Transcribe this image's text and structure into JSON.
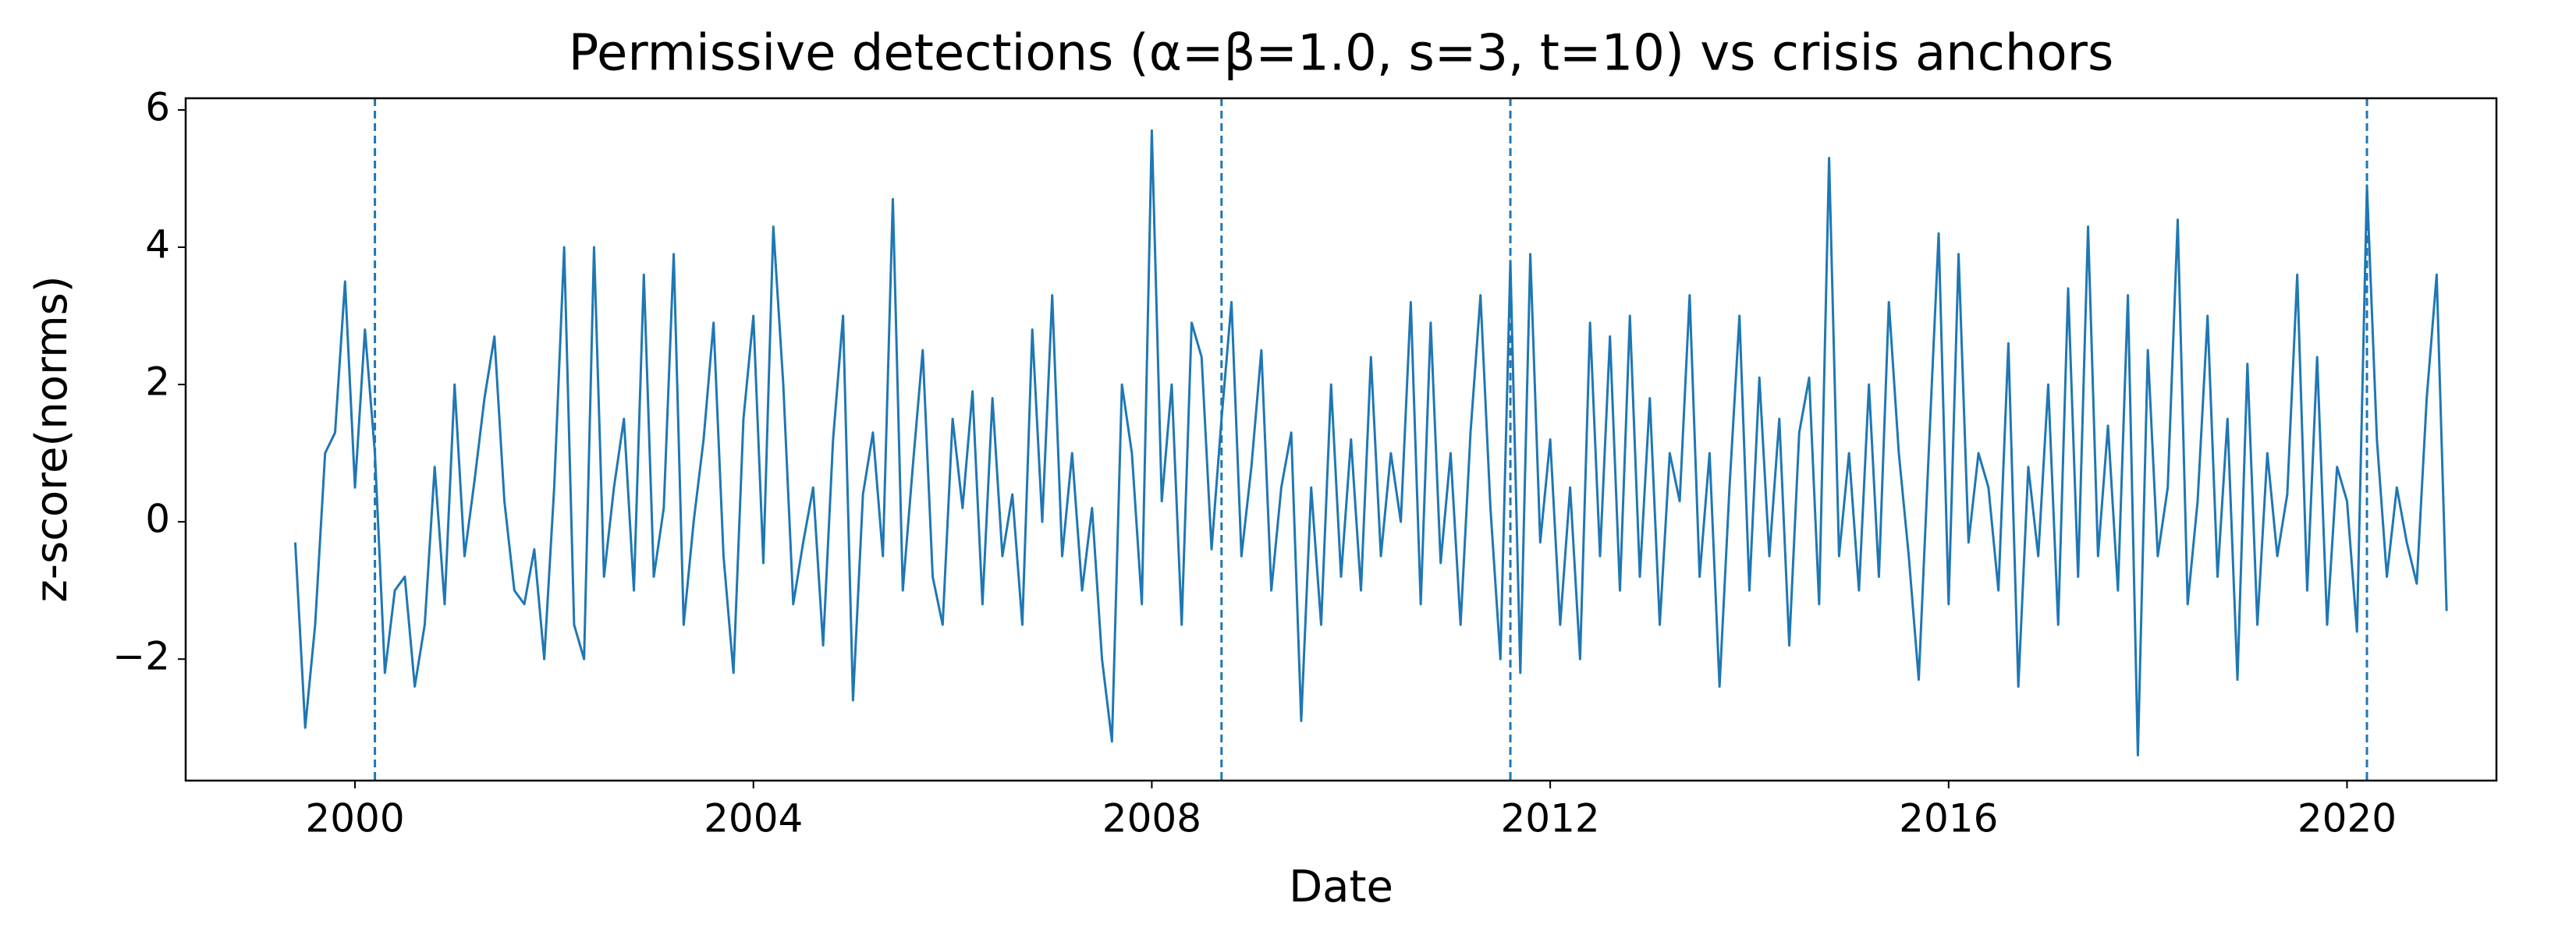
{
  "chart_data": {
    "type": "line",
    "title": "Permissive detections (α=β=1.0, s=3, t=10) vs crisis anchors",
    "xlabel": "Date",
    "ylabel": "z-score(norms)",
    "xlim": [
      1998.3,
      2021.5
    ],
    "xticks": [
      2000,
      2004,
      2008,
      2012,
      2016,
      2020
    ],
    "ylim": [
      -3.77,
      6.17
    ],
    "yticks": [
      {
        "value": -2,
        "label": "−2"
      },
      0,
      2,
      4,
      6
    ],
    "grid": false,
    "anchors": {
      "color": "#1f77b4",
      "dash": "dashed",
      "x": [
        2000.2,
        2008.7,
        2011.6,
        2020.2
      ]
    },
    "x": [
      1999.4,
      1999.5,
      1999.6,
      1999.7,
      1999.8,
      1999.9,
      2000.0,
      2000.1,
      2000.2,
      2000.3,
      2000.4,
      2000.5,
      2000.6,
      2000.7,
      2000.8,
      2000.9,
      2001.0,
      2001.1,
      2001.2,
      2001.3,
      2001.4,
      2001.5,
      2001.6,
      2001.7,
      2001.8,
      2001.9,
      2002.0,
      2002.1,
      2002.2,
      2002.3,
      2002.4,
      2002.5,
      2002.6,
      2002.7,
      2002.8,
      2002.9,
      2003.0,
      2003.1,
      2003.2,
      2003.3,
      2003.4,
      2003.5,
      2003.6,
      2003.7,
      2003.8,
      2003.9,
      2004.0,
      2004.1,
      2004.2,
      2004.3,
      2004.4,
      2004.5,
      2004.6,
      2004.7,
      2004.8,
      2004.9,
      2005.0,
      2005.1,
      2005.2,
      2005.3,
      2005.4,
      2005.5,
      2005.6,
      2005.7,
      2005.8,
      2005.9,
      2006.0,
      2006.1,
      2006.2,
      2006.3,
      2006.4,
      2006.5,
      2006.6,
      2006.7,
      2006.8,
      2006.9,
      2007.0,
      2007.1,
      2007.2,
      2007.3,
      2007.4,
      2007.5,
      2007.6,
      2007.7,
      2007.8,
      2007.9,
      2008.0,
      2008.1,
      2008.2,
      2008.3,
      2008.4,
      2008.5,
      2008.6,
      2008.7,
      2008.8,
      2008.9,
      2009.0,
      2009.1,
      2009.2,
      2009.3,
      2009.4,
      2009.5,
      2009.6,
      2009.7,
      2009.8,
      2009.9,
      2010.0,
      2010.1,
      2010.2,
      2010.3,
      2010.4,
      2010.5,
      2010.6,
      2010.7,
      2010.8,
      2010.9,
      2011.0,
      2011.1,
      2011.2,
      2011.3,
      2011.4,
      2011.5,
      2011.6,
      2011.7,
      2011.8,
      2011.9,
      2012.0,
      2012.1,
      2012.2,
      2012.3,
      2012.4,
      2012.5,
      2012.6,
      2012.7,
      2012.8,
      2012.9,
      2013.0,
      2013.1,
      2013.2,
      2013.3,
      2013.4,
      2013.5,
      2013.6,
      2013.7,
      2013.8,
      2013.9,
      2014.0,
      2014.1,
      2014.2,
      2014.3,
      2014.4,
      2014.5,
      2014.6,
      2014.7,
      2014.8,
      2014.9,
      2015.0,
      2015.1,
      2015.2,
      2015.3,
      2015.4,
      2015.5,
      2015.6,
      2015.7,
      2015.8,
      2015.9,
      2016.0,
      2016.1,
      2016.2,
      2016.3,
      2016.4,
      2016.5,
      2016.6,
      2016.7,
      2016.8,
      2016.9,
      2017.0,
      2017.1,
      2017.2,
      2017.3,
      2017.4,
      2017.5,
      2017.6,
      2017.7,
      2017.8,
      2017.9,
      2018.0,
      2018.1,
      2018.2,
      2018.3,
      2018.4,
      2018.5,
      2018.6,
      2018.7,
      2018.8,
      2018.9,
      2019.0,
      2019.1,
      2019.2,
      2019.3,
      2019.4,
      2019.5,
      2019.6,
      2019.7,
      2019.8,
      2019.9,
      2020.0,
      2020.1,
      2020.2,
      2020.3,
      2020.4,
      2020.5,
      2020.6,
      2020.7,
      2020.8,
      2020.9,
      2021.0
    ],
    "series": [
      {
        "color": "#1f77b4",
        "values": [
          -0.3,
          -3.0,
          -1.5,
          1.0,
          1.3,
          3.5,
          0.5,
          2.8,
          1.0,
          -2.2,
          -1.0,
          -0.8,
          -2.4,
          -1.5,
          0.8,
          -1.2,
          2.0,
          -0.5,
          0.6,
          1.8,
          2.7,
          0.3,
          -1.0,
          -1.2,
          -0.4,
          -2.0,
          0.5,
          4.0,
          -1.5,
          -2.0,
          4.0,
          -0.8,
          0.5,
          1.5,
          -1.0,
          3.6,
          -0.8,
          0.2,
          3.9,
          -1.5,
          0.0,
          1.2,
          2.9,
          -0.5,
          -2.2,
          1.5,
          3.0,
          -0.6,
          4.3,
          2.0,
          -1.2,
          -0.3,
          0.5,
          -1.8,
          1.2,
          3.0,
          -2.6,
          0.4,
          1.3,
          -0.5,
          4.7,
          -1.0,
          0.8,
          2.5,
          -0.8,
          -1.5,
          1.5,
          0.2,
          1.9,
          -1.2,
          1.8,
          -0.5,
          0.4,
          -1.5,
          2.8,
          0.0,
          3.3,
          -0.5,
          1.0,
          -1.0,
          0.2,
          -2.0,
          -3.2,
          2.0,
          1.0,
          -1.2,
          5.7,
          0.3,
          2.0,
          -1.5,
          2.9,
          2.4,
          -0.4,
          1.5,
          3.2,
          -0.5,
          0.8,
          2.5,
          -1.0,
          0.5,
          1.3,
          -2.9,
          0.5,
          -1.5,
          2.0,
          -0.8,
          1.2,
          -1.0,
          2.4,
          -0.5,
          1.0,
          0.0,
          3.2,
          -1.2,
          2.9,
          -0.6,
          1.0,
          -1.5,
          1.3,
          3.3,
          0.2,
          -2.0,
          3.8,
          -2.2,
          3.9,
          -0.3,
          1.2,
          -1.5,
          0.5,
          -2.0,
          2.9,
          -0.5,
          2.7,
          -1.0,
          3.0,
          -0.8,
          1.8,
          -1.5,
          1.0,
          0.3,
          3.3,
          -0.8,
          1.0,
          -2.4,
          0.5,
          3.0,
          -1.0,
          2.1,
          -0.5,
          1.5,
          -1.8,
          1.3,
          2.1,
          -1.2,
          5.3,
          -0.5,
          1.0,
          -1.0,
          2.0,
          -0.8,
          3.2,
          1.0,
          -0.5,
          -2.3,
          1.0,
          4.2,
          -1.2,
          3.9,
          -0.3,
          1.0,
          0.5,
          -1.0,
          2.6,
          -2.4,
          0.8,
          -0.5,
          2.0,
          -1.5,
          3.4,
          -0.8,
          4.3,
          -0.5,
          1.4,
          -1.0,
          3.3,
          -3.4,
          2.5,
          -0.5,
          0.5,
          4.4,
          -1.2,
          0.3,
          3.0,
          -0.8,
          1.5,
          -2.3,
          2.3,
          -1.5,
          1.0,
          -0.5,
          0.4,
          3.6,
          -1.0,
          2.4,
          -1.5,
          0.8,
          0.3,
          -1.6,
          4.9,
          1.2,
          -0.8,
          0.5,
          -0.3,
          -0.9,
          1.8,
          3.6,
          -1.3
        ]
      }
    ]
  }
}
